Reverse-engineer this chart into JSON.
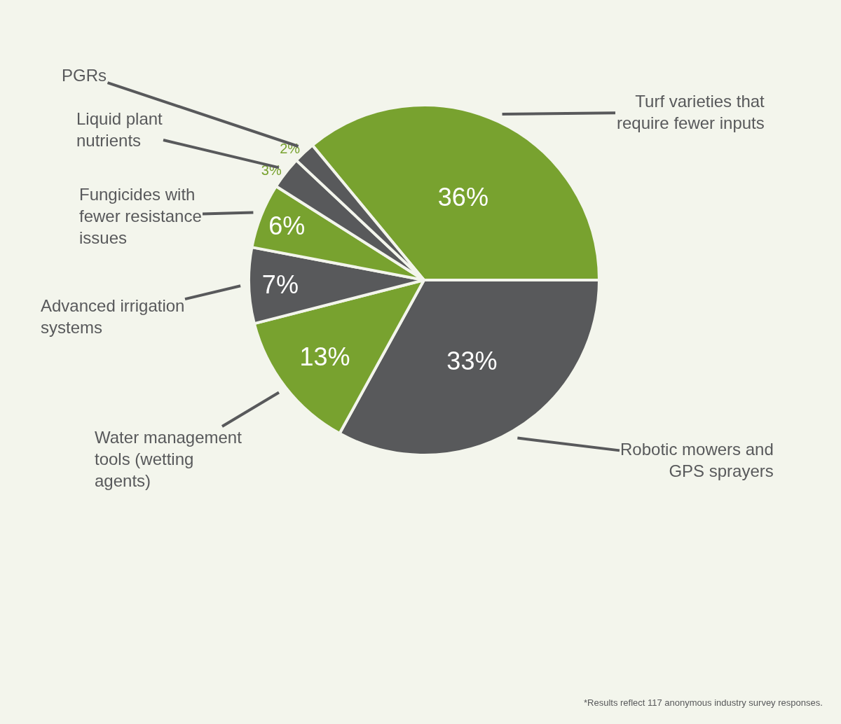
{
  "chart_data": {
    "type": "pie",
    "categories": [
      "Turf varieties that require fewer inputs",
      "Robotic mowers and GPS sprayers",
      "Water management tools (wetting agents)",
      "Advanced irrigation systems",
      "Fungicides with fewer resistance issues",
      "Liquid plant nutrients",
      "PGRs"
    ],
    "values": [
      36,
      33,
      13,
      7,
      6,
      3,
      2
    ],
    "value_labels": [
      "36%",
      "33%",
      "13%",
      "7%",
      "6%",
      "3%",
      "2%"
    ],
    "colors": [
      "#78a22f",
      "#58595b",
      "#78a22f",
      "#58595b",
      "#78a22f",
      "#58595b",
      "#58595b"
    ],
    "annotations": [
      "*Results reflect 117 anonymous industry survey responses."
    ],
    "legend": false
  }
}
